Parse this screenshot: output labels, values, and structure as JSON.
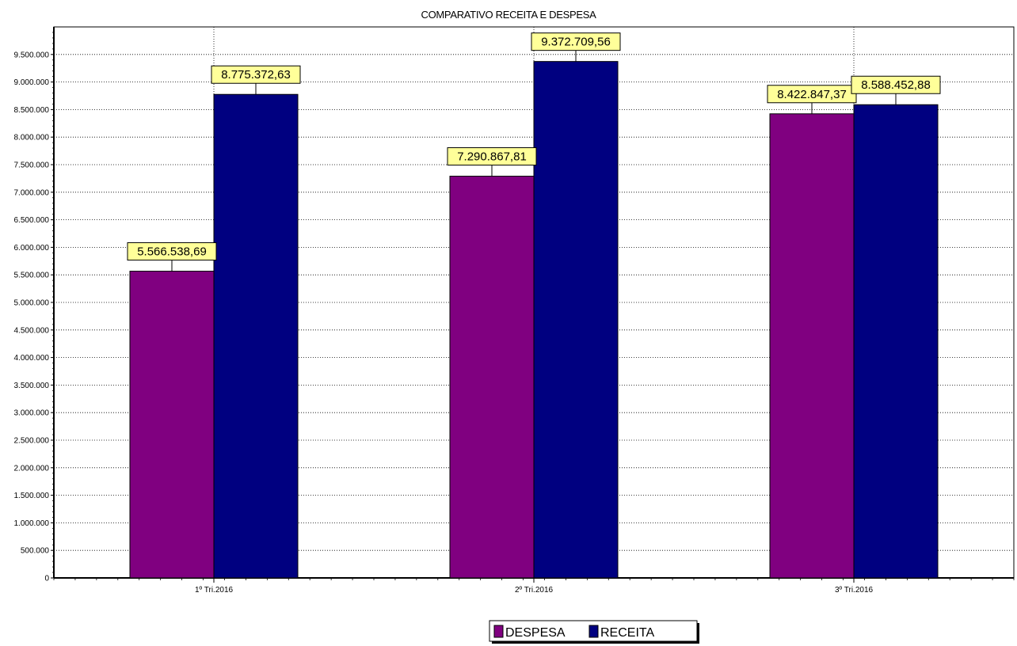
{
  "chart_data": {
    "type": "bar",
    "title": "COMPARATIVO RECEITA E DESPESA",
    "categories": [
      "1º Tri.2016",
      "2º Tri.2016",
      "3º Tri.2016"
    ],
    "series": [
      {
        "name": "DESPESA",
        "color": "#800080",
        "values": [
          5566538.69,
          7290867.81,
          8422847.37
        ],
        "labels": [
          "5.566.538,69",
          "7.290.867,81",
          "8.422.847,37"
        ]
      },
      {
        "name": "RECEITA",
        "color": "#000080",
        "values": [
          8775372.63,
          9372709.56,
          8588452.88
        ],
        "labels": [
          "8.775.372,63",
          "9.372.709,56",
          "8.588.452,88"
        ]
      }
    ],
    "ylim": [
      0,
      10000000
    ],
    "yticks": [
      0,
      500000,
      1000000,
      1500000,
      2000000,
      2500000,
      3000000,
      3500000,
      4000000,
      4500000,
      5000000,
      5500000,
      6000000,
      6500000,
      7000000,
      7500000,
      8000000,
      8500000,
      9000000,
      9500000
    ],
    "ytick_labels": [
      "0",
      "500.000",
      "1.000.000",
      "1.500.000",
      "2.000.000",
      "2.500.000",
      "3.000.000",
      "3.500.000",
      "4.000.000",
      "4.500.000",
      "5.000.000",
      "5.500.000",
      "6.000.000",
      "6.500.000",
      "7.000.000",
      "7.500.000",
      "8.000.000",
      "8.500.000",
      "9.000.000",
      "9.500.000"
    ],
    "data_label_background": "#ffff99",
    "grid": true,
    "legend_position": "bottom-center"
  }
}
